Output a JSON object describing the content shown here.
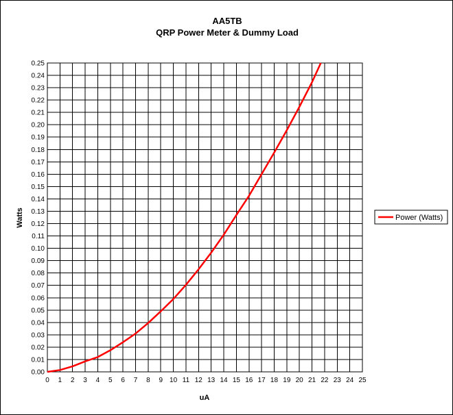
{
  "chart_data": {
    "type": "line",
    "title": [
      "AA5TB",
      "QRP Power Meter & Dummy Load"
    ],
    "xlabel": "uA",
    "ylabel": "Watts",
    "xlim": [
      0,
      25
    ],
    "ylim": [
      0,
      0.25
    ],
    "x_ticks": [
      0,
      1,
      2,
      3,
      4,
      5,
      6,
      7,
      8,
      9,
      10,
      11,
      12,
      13,
      14,
      15,
      16,
      17,
      18,
      19,
      20,
      21,
      22,
      23,
      24,
      25
    ],
    "y_ticks": [
      "0.00",
      "0.01",
      "0.02",
      "0.03",
      "0.04",
      "0.05",
      "0.06",
      "0.07",
      "0.08",
      "0.09",
      "0.10",
      "0.11",
      "0.12",
      "0.13",
      "0.14",
      "0.15",
      "0.16",
      "0.17",
      "0.18",
      "0.19",
      "0.20",
      "0.21",
      "0.22",
      "0.23",
      "0.24",
      "0.25"
    ],
    "grid": true,
    "legend_position": "right",
    "series": [
      {
        "name": "Power (Watts)",
        "color": "#ff0000",
        "x": [
          0,
          1,
          2,
          3,
          4,
          5,
          6,
          7,
          8,
          9,
          10,
          11,
          12,
          13,
          14,
          15,
          16,
          17,
          18,
          19,
          20,
          21,
          21.7
        ],
        "y": [
          0.0,
          0.0015,
          0.0045,
          0.0085,
          0.012,
          0.0175,
          0.024,
          0.031,
          0.0395,
          0.049,
          0.059,
          0.0705,
          0.083,
          0.0965,
          0.111,
          0.127,
          0.1425,
          0.16,
          0.1775,
          0.1955,
          0.2145,
          0.2345,
          0.25
        ]
      }
    ]
  }
}
